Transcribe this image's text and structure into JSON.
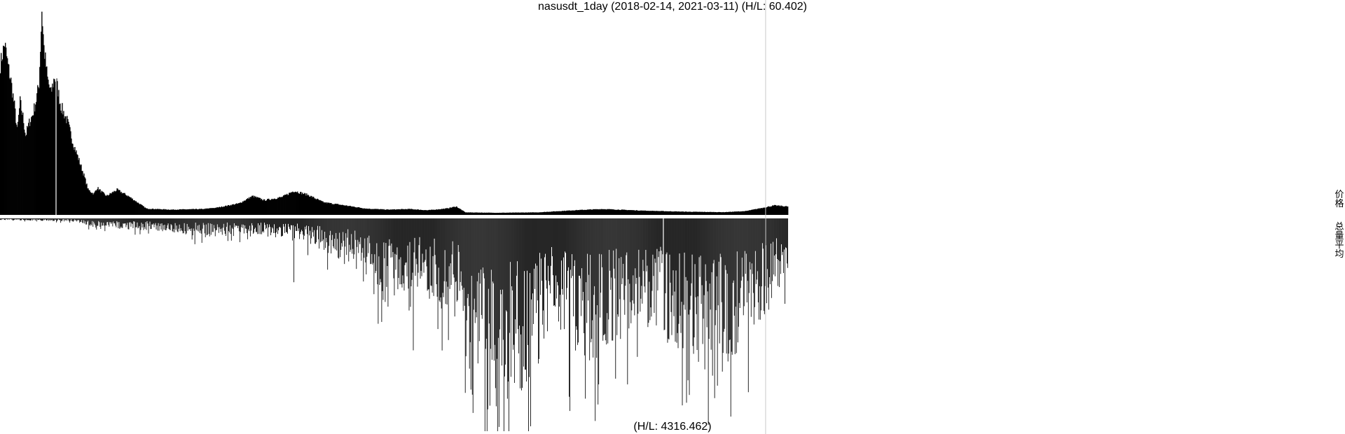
{
  "chart_data": {
    "type": "bar",
    "title": "nasusdt_1day (2018-02-14, 2021-03-11) (H/L: 60.402)",
    "x_range": [
      "2018-02-14",
      "2021-03-11"
    ],
    "panels": [
      {
        "name": "价格",
        "type": "area",
        "high_low": 60.402,
        "baseline": "bottom",
        "fill": "#000000",
        "keypoints": [
          [
            "2018-02-14",
            0.72
          ],
          [
            "2018-02-20",
            0.82
          ],
          [
            "2018-02-25",
            0.71
          ],
          [
            "2018-03-01",
            0.64
          ],
          [
            "2018-03-06",
            0.52
          ],
          [
            "2018-03-10",
            0.4
          ],
          [
            "2018-03-14",
            0.54
          ],
          [
            "2018-03-18",
            0.47
          ],
          [
            "2018-03-22",
            0.38
          ],
          [
            "2018-03-27",
            0.44
          ],
          [
            "2018-04-01",
            0.48
          ],
          [
            "2018-04-06",
            0.55
          ],
          [
            "2018-04-10",
            0.63
          ],
          [
            "2018-04-12",
            0.8
          ],
          [
            "2018-04-14",
            0.98
          ],
          [
            "2018-04-17",
            0.8
          ],
          [
            "2018-04-22",
            0.65
          ],
          [
            "2018-04-27",
            0.58
          ],
          [
            "2018-05-02",
            0.66
          ],
          [
            "2018-05-05",
            0.63
          ],
          [
            "2018-05-11",
            0.52
          ],
          [
            "2018-05-20",
            0.45
          ],
          [
            "2018-05-28",
            0.35
          ],
          [
            "2018-06-04",
            0.28
          ],
          [
            "2018-06-12",
            0.2
          ],
          [
            "2018-06-19",
            0.12
          ],
          [
            "2018-06-27",
            0.1
          ],
          [
            "2018-07-02",
            0.13
          ],
          [
            "2018-07-08",
            0.11
          ],
          [
            "2018-07-15",
            0.09
          ],
          [
            "2018-07-30",
            0.12
          ],
          [
            "2018-08-15",
            0.09
          ],
          [
            "2018-08-28",
            0.06
          ],
          [
            "2018-09-10",
            0.03
          ],
          [
            "2018-10-15",
            0.025
          ],
          [
            "2018-11-30",
            0.028
          ],
          [
            "2018-12-20",
            0.035
          ],
          [
            "2019-01-20",
            0.055
          ],
          [
            "2019-02-08",
            0.09
          ],
          [
            "2019-02-25",
            0.07
          ],
          [
            "2019-03-22",
            0.085
          ],
          [
            "2019-04-08",
            0.115
          ],
          [
            "2019-04-28",
            0.095
          ],
          [
            "2019-05-20",
            0.06
          ],
          [
            "2019-06-20",
            0.045
          ],
          [
            "2019-07-20",
            0.03
          ],
          [
            "2019-08-20",
            0.025
          ],
          [
            "2019-09-20",
            0.028
          ],
          [
            "2019-10-15",
            0.022
          ],
          [
            "2019-11-10",
            0.03
          ],
          [
            "2019-11-25",
            0.04
          ],
          [
            "2019-12-08",
            0.012
          ],
          [
            "2020-01-20",
            0.01
          ],
          [
            "2020-03-20",
            0.012
          ],
          [
            "2020-05-10",
            0.022
          ],
          [
            "2020-06-20",
            0.028
          ],
          [
            "2020-08-20",
            0.02
          ],
          [
            "2020-10-20",
            0.015
          ],
          [
            "2020-12-10",
            0.013
          ],
          [
            "2021-01-10",
            0.018
          ],
          [
            "2021-02-05",
            0.035
          ],
          [
            "2021-02-20",
            0.045
          ],
          [
            "2021-03-11",
            0.04
          ]
        ]
      },
      {
        "name": "总量平均",
        "type": "bar",
        "high_low": 4316.462,
        "baseline": "top",
        "fill": "#000000",
        "keypoints": [
          [
            "2018-02-14",
            0.005
          ],
          [
            "2018-06-01",
            0.01
          ],
          [
            "2018-07-01",
            0.03
          ],
          [
            "2018-10-01",
            0.04
          ],
          [
            "2018-12-01",
            0.06
          ],
          [
            "2019-02-01",
            0.05
          ],
          [
            "2019-04-05",
            0.06
          ],
          [
            "2019-05-01",
            0.08
          ],
          [
            "2019-06-01",
            0.12
          ],
          [
            "2019-07-15",
            0.15
          ],
          [
            "2019-08-10",
            0.3
          ],
          [
            "2019-09-01",
            0.25
          ],
          [
            "2019-10-01",
            0.22
          ],
          [
            "2019-11-01",
            0.28
          ],
          [
            "2019-12-01",
            0.32
          ],
          [
            "2019-12-15",
            0.55
          ],
          [
            "2020-01-20",
            0.62
          ],
          [
            "2020-03-01",
            0.55
          ],
          [
            "2020-04-15",
            0.35
          ],
          [
            "2020-05-15",
            0.42
          ],
          [
            "2020-06-10",
            0.45
          ],
          [
            "2020-07-01",
            0.4
          ],
          [
            "2020-08-15",
            0.33
          ],
          [
            "2020-10-01",
            0.42
          ],
          [
            "2020-11-15",
            0.5
          ],
          [
            "2020-12-20",
            0.45
          ],
          [
            "2021-02-10",
            0.3
          ],
          [
            "2021-03-11",
            0.16
          ]
        ],
        "spikes": [
          [
            "2019-04-08",
            0.3
          ],
          [
            "2019-09-25",
            0.62
          ],
          [
            "2019-10-30",
            0.52
          ],
          [
            "2020-01-25",
            0.98
          ],
          [
            "2020-01-12",
            0.88
          ],
          [
            "2020-06-15",
            0.78
          ],
          [
            "2020-11-18",
            0.97
          ],
          [
            "2020-12-08",
            0.72
          ]
        ]
      }
    ],
    "annotations": [
      {
        "text": "(H/L: 4316.462)",
        "panel": "总量平均"
      }
    ],
    "cursor_date": "2021-02-08",
    "legend": [
      "价格",
      "总量平均"
    ],
    "legend_placement": "right"
  }
}
